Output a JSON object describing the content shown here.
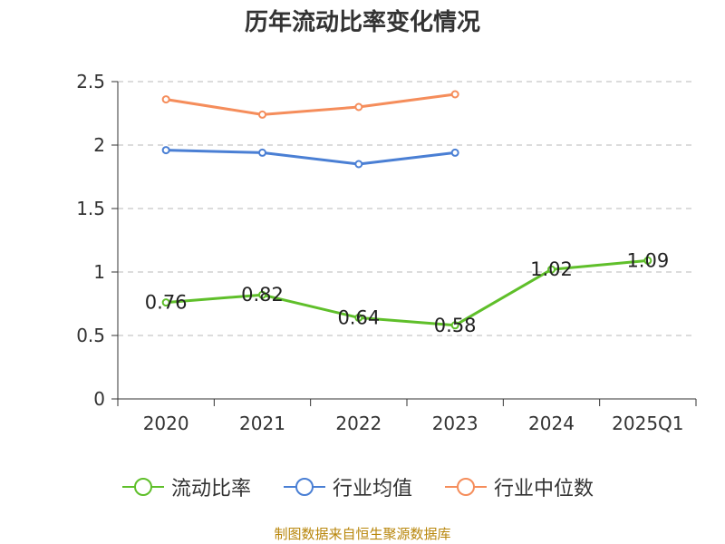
{
  "chart_data": {
    "type": "line",
    "title": "历年流动比率变化情况",
    "categories": [
      "2020",
      "2021",
      "2022",
      "2023",
      "2024",
      "2025Q1"
    ],
    "ylim": [
      0,
      2.5
    ],
    "yticks": [
      0,
      0.5,
      1,
      1.5,
      2,
      2.5
    ],
    "ytick_labels": [
      "0",
      "0.5",
      "1",
      "1.5",
      "2",
      "2.5"
    ],
    "grid": true,
    "legend_position": "bottom-center",
    "series": [
      {
        "name": "流动比率",
        "color": "#5fbf2a",
        "values": [
          0.76,
          0.82,
          0.64,
          0.58,
          1.02,
          1.09
        ],
        "labels": [
          "0.76",
          "0.82",
          "0.64",
          "0.58",
          "1.02",
          "1.09"
        ]
      },
      {
        "name": "行业均值",
        "color": "#4a7fd4",
        "values": [
          1.96,
          1.94,
          1.85,
          1.94,
          null,
          null
        ]
      },
      {
        "name": "行业中位数",
        "color": "#f58d5b",
        "values": [
          2.36,
          2.24,
          2.3,
          2.4,
          null,
          null
        ]
      }
    ],
    "source": "制图数据来自恒生聚源数据库"
  }
}
